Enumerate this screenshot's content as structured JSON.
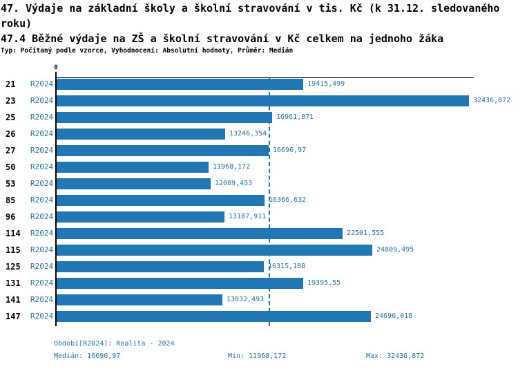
{
  "header": {
    "title": "47. Výdaje na základní školy a školní stravování v tis. Kč (k 31.12. sledovaného roku)",
    "subtitle": "47.4 Běžné výdaje na ZŠ a školní stravování v Kč celkem na jednoho žáka",
    "meta": "Typ: Počítaný podle vzorce, Vyhodnocení: Absolutní hodnoty, Průměr: Medián"
  },
  "axis": {
    "zero_label": "0"
  },
  "colors": {
    "bar": "#2177b4",
    "blue_text": "#2177b4",
    "axis": "#000000"
  },
  "footer": {
    "period": "Období[R2024]: Realita - 2024",
    "median": "Medián: 16696,97",
    "min": "Min: 11968,172",
    "max": "Max: 32436,872"
  },
  "chart_data": {
    "type": "bar",
    "orientation": "horizontal",
    "title": "47.4 Běžné výdaje na ZŠ a školní stravování v Kč celkem na jednoho žáka",
    "series_label": "R2024",
    "categories": [
      "21",
      "23",
      "25",
      "26",
      "27",
      "50",
      "53",
      "85",
      "96",
      "114",
      "115",
      "125",
      "131",
      "141",
      "147"
    ],
    "values": [
      19415.499,
      32436.872,
      16961.871,
      13246.354,
      16696.97,
      11968.172,
      12089.453,
      16366.632,
      13187.911,
      22501.555,
      24809.495,
      16315.188,
      19395.55,
      13032.493,
      24696.018
    ],
    "value_labels": [
      "19415,499",
      "32436,872",
      "16961,871",
      "13246,354",
      "16696,97",
      "11968,172",
      "12089,453",
      "16366,632",
      "13187,911",
      "22501,555",
      "24809,495",
      "16315,188",
      "19395,55",
      "13032,493",
      "24696,018"
    ],
    "xlim": [
      0,
      32820
    ],
    "median": 16696.97,
    "min": 11968.172,
    "max": 32436.872,
    "median_line": true,
    "grid": false,
    "legend": false
  }
}
